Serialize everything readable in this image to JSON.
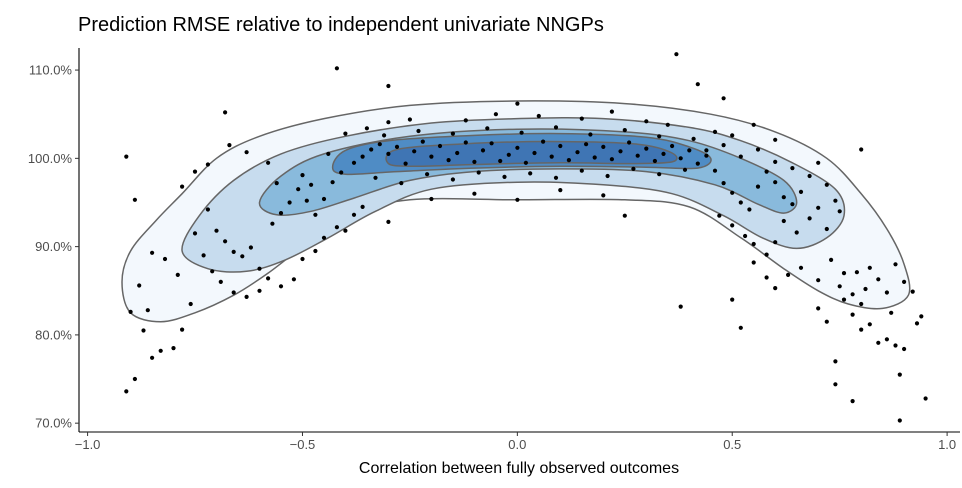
{
  "chart_data": {
    "type": "scatter",
    "title": "Prediction RMSE relative to independent univariate NNGPs",
    "xlabel": "Correlation between fully observed outcomes",
    "ylabel": "",
    "xlim": [
      -1.02,
      1.03
    ],
    "ylim": [
      69.0,
      112.5
    ],
    "x_ticks": [
      -1.0,
      -0.5,
      0.0,
      0.5,
      1.0
    ],
    "x_tick_labels": [
      "−1.0",
      "−0.5",
      "0.0",
      "0.5",
      "1.0"
    ],
    "y_ticks": [
      70,
      80,
      90,
      100,
      110
    ],
    "y_tick_labels": [
      "70.0%",
      "80.0%",
      "90.0%",
      "100.0%",
      "110.0%"
    ],
    "grid": false,
    "density_fill_colors": [
      "#f3f8fd",
      "#c7dcee",
      "#89badc",
      "#4f8cc5",
      "#3f75b4"
    ],
    "contour_line_color": "#666666",
    "contours": [
      {
        "level": 1,
        "points": [
          [
            -0.92,
            86
          ],
          [
            -0.9,
            89.5
          ],
          [
            -0.84,
            93
          ],
          [
            -0.78,
            96
          ],
          [
            -0.7,
            100
          ],
          [
            -0.6,
            102.5
          ],
          [
            -0.45,
            104.5
          ],
          [
            -0.25,
            106
          ],
          [
            0,
            106.5
          ],
          [
            0.25,
            106.2
          ],
          [
            0.45,
            105
          ],
          [
            0.6,
            103
          ],
          [
            0.72,
            100
          ],
          [
            0.8,
            96
          ],
          [
            0.86,
            92
          ],
          [
            0.9,
            88
          ],
          [
            0.91,
            84.5
          ],
          [
            0.85,
            83
          ],
          [
            0.77,
            83.5
          ],
          [
            0.7,
            85
          ],
          [
            0.62,
            87.5
          ],
          [
            0.52,
            91
          ],
          [
            0.4,
            94.5
          ],
          [
            0.25,
            95.3
          ],
          [
            0,
            95.3
          ],
          [
            -0.25,
            95.3
          ],
          [
            -0.4,
            93.5
          ],
          [
            -0.5,
            90
          ],
          [
            -0.58,
            87
          ],
          [
            -0.66,
            84.5
          ],
          [
            -0.75,
            82.5
          ],
          [
            -0.83,
            81.5
          ],
          [
            -0.9,
            82.5
          ]
        ]
      },
      {
        "level": 2,
        "points": [
          [
            -0.78,
            89.5
          ],
          [
            -0.74,
            93.5
          ],
          [
            -0.66,
            97.5
          ],
          [
            -0.55,
            100.5
          ],
          [
            -0.4,
            102.5
          ],
          [
            -0.2,
            104
          ],
          [
            0,
            104.5
          ],
          [
            0.2,
            104.5
          ],
          [
            0.4,
            103.5
          ],
          [
            0.52,
            102
          ],
          [
            0.64,
            99.5
          ],
          [
            0.74,
            96.5
          ],
          [
            0.76,
            93.5
          ],
          [
            0.72,
            91
          ],
          [
            0.65,
            89.8
          ],
          [
            0.57,
            91
          ],
          [
            0.48,
            93.5
          ],
          [
            0.36,
            96
          ],
          [
            0.2,
            97
          ],
          [
            0,
            97.3
          ],
          [
            -0.2,
            96.5
          ],
          [
            -0.33,
            94
          ],
          [
            -0.44,
            91
          ],
          [
            -0.54,
            88.5
          ],
          [
            -0.63,
            87.2
          ],
          [
            -0.72,
            87.5
          ]
        ]
      },
      {
        "level": 3,
        "points": [
          [
            -0.6,
            95
          ],
          [
            -0.55,
            98
          ],
          [
            -0.45,
            100.5
          ],
          [
            -0.25,
            102.5
          ],
          [
            0,
            103.3
          ],
          [
            0.25,
            103
          ],
          [
            0.4,
            102
          ],
          [
            0.52,
            100
          ],
          [
            0.62,
            97.5
          ],
          [
            0.65,
            95
          ],
          [
            0.62,
            93.8
          ],
          [
            0.56,
            94.8
          ],
          [
            0.46,
            97
          ],
          [
            0.3,
            98.5
          ],
          [
            0.1,
            98.8
          ],
          [
            -0.1,
            98.5
          ],
          [
            -0.25,
            97.5
          ],
          [
            -0.38,
            95.5
          ],
          [
            -0.48,
            94
          ],
          [
            -0.56,
            93.6
          ]
        ]
      },
      {
        "level": 4,
        "points": [
          [
            -0.43,
            99
          ],
          [
            -0.4,
            100.9
          ],
          [
            -0.3,
            102
          ],
          [
            -0.1,
            102.6
          ],
          [
            0.1,
            102.8
          ],
          [
            0.3,
            102.4
          ],
          [
            0.4,
            101.3
          ],
          [
            0.45,
            100
          ],
          [
            0.42,
            98.9
          ],
          [
            0.3,
            99
          ],
          [
            0.1,
            99.1
          ],
          [
            -0.1,
            98.9
          ],
          [
            -0.28,
            98.5
          ],
          [
            -0.4,
            98.2
          ]
        ]
      },
      {
        "level": 5,
        "points": [
          [
            -0.3,
            99.4
          ],
          [
            -0.28,
            101
          ],
          [
            -0.1,
            101.7
          ],
          [
            0.1,
            101.9
          ],
          [
            0.28,
            101.6
          ],
          [
            0.36,
            100.6
          ],
          [
            0.36,
            99.6
          ],
          [
            0.26,
            99.4
          ],
          [
            0.1,
            99.5
          ],
          [
            -0.1,
            99.3
          ],
          [
            -0.24,
            99.1
          ]
        ]
      }
    ],
    "points": [
      [
        -0.42,
        110.2
      ],
      [
        -0.3,
        108.2
      ],
      [
        0.37,
        111.8
      ],
      [
        0.42,
        108.4
      ],
      [
        0.48,
        106.8
      ],
      [
        -0.68,
        105.2
      ],
      [
        0.8,
        101
      ],
      [
        0.0,
        106.2
      ],
      [
        0.3,
        104.2
      ],
      [
        -0.91,
        100.2
      ],
      [
        -0.89,
        95.3
      ],
      [
        -0.85,
        89.3
      ],
      [
        -0.88,
        85.6
      ],
      [
        -0.9,
        82.6
      ],
      [
        -0.87,
        80.5
      ],
      [
        -0.83,
        78.2
      ],
      [
        -0.85,
        77.4
      ],
      [
        -0.91,
        73.6
      ],
      [
        -0.89,
        75
      ],
      [
        -0.8,
        78.5
      ],
      [
        -0.78,
        80.6
      ],
      [
        -0.76,
        83.5
      ],
      [
        -0.79,
        86.8
      ],
      [
        -0.82,
        88.6
      ],
      [
        -0.86,
        82.8
      ],
      [
        -0.78,
        96.8
      ],
      [
        -0.75,
        98.5
      ],
      [
        -0.72,
        99.3
      ],
      [
        -0.67,
        101.5
      ],
      [
        -0.63,
        100.7
      ],
      [
        -0.58,
        99.5
      ],
      [
        -0.56,
        97.2
      ],
      [
        -0.5,
        98.1
      ],
      [
        -0.48,
        97.0
      ],
      [
        -0.44,
        100.5
      ],
      [
        -0.4,
        102.8
      ],
      [
        -0.35,
        103.4
      ],
      [
        -0.3,
        104.1
      ],
      [
        -0.25,
        104.4
      ],
      [
        -0.72,
        94.2
      ],
      [
        -0.7,
        91.8
      ],
      [
        -0.68,
        90.6
      ],
      [
        -0.66,
        89.4
      ],
      [
        -0.64,
        88.9
      ],
      [
        -0.62,
        89.9
      ],
      [
        -0.6,
        87.5
      ],
      [
        -0.58,
        86.4
      ],
      [
        -0.55,
        85.5
      ],
      [
        -0.52,
        86.3
      ],
      [
        -0.5,
        88.6
      ],
      [
        -0.47,
        89.5
      ],
      [
        -0.45,
        91.0
      ],
      [
        -0.42,
        92.2
      ],
      [
        -0.4,
        91.8
      ],
      [
        -0.38,
        93.6
      ],
      [
        -0.36,
        94.5
      ],
      [
        -0.75,
        91.5
      ],
      [
        -0.73,
        89.0
      ],
      [
        -0.71,
        87.2
      ],
      [
        -0.69,
        86.0
      ],
      [
        -0.66,
        84.8
      ],
      [
        -0.63,
        84.3
      ],
      [
        -0.6,
        85.0
      ],
      [
        -0.57,
        92.6
      ],
      [
        -0.55,
        93.8
      ],
      [
        -0.53,
        95.0
      ],
      [
        -0.51,
        96.5
      ],
      [
        -0.49,
        95.2
      ],
      [
        -0.47,
        93.6
      ],
      [
        -0.45,
        95.4
      ],
      [
        -0.43,
        97.3
      ],
      [
        -0.41,
        98.4
      ],
      [
        -0.38,
        99.5
      ],
      [
        -0.36,
        100.2
      ],
      [
        -0.34,
        101.0
      ],
      [
        -0.32,
        101.6
      ],
      [
        -0.3,
        100.5
      ],
      [
        -0.28,
        101.3
      ],
      [
        -0.26,
        99.4
      ],
      [
        -0.24,
        100.8
      ],
      [
        -0.22,
        101.9
      ],
      [
        -0.2,
        100.2
      ],
      [
        -0.18,
        101.4
      ],
      [
        -0.16,
        99.8
      ],
      [
        -0.14,
        100.6
      ],
      [
        -0.12,
        101.8
      ],
      [
        -0.1,
        99.6
      ],
      [
        -0.08,
        100.9
      ],
      [
        -0.06,
        101.7
      ],
      [
        -0.04,
        99.7
      ],
      [
        -0.02,
        100.4
      ],
      [
        0.0,
        101.2
      ],
      [
        0.02,
        99.5
      ],
      [
        0.04,
        100.6
      ],
      [
        0.06,
        101.9
      ],
      [
        0.08,
        100.2
      ],
      [
        0.1,
        101.4
      ],
      [
        0.12,
        99.8
      ],
      [
        0.14,
        100.7
      ],
      [
        0.16,
        101.6
      ],
      [
        0.18,
        100.1
      ],
      [
        0.2,
        101.3
      ],
      [
        0.22,
        99.9
      ],
      [
        0.24,
        100.8
      ],
      [
        0.26,
        101.8
      ],
      [
        0.28,
        100.3
      ],
      [
        0.3,
        101.1
      ],
      [
        0.32,
        99.7
      ],
      [
        0.34,
        100.5
      ],
      [
        0.36,
        101.4
      ],
      [
        0.38,
        100.0
      ],
      [
        0.4,
        100.9
      ],
      [
        0.42,
        99.4
      ],
      [
        0.44,
        100.3
      ],
      [
        -0.33,
        97.8
      ],
      [
        -0.27,
        97.2
      ],
      [
        -0.21,
        98.2
      ],
      [
        -0.15,
        97.6
      ],
      [
        -0.09,
        98.4
      ],
      [
        -0.03,
        97.9
      ],
      [
        0.03,
        98.3
      ],
      [
        0.09,
        97.8
      ],
      [
        0.15,
        98.6
      ],
      [
        0.21,
        98.0
      ],
      [
        0.27,
        98.8
      ],
      [
        0.33,
        98.2
      ],
      [
        0.39,
        98.7
      ],
      [
        -0.31,
        102.6
      ],
      [
        -0.23,
        103.1
      ],
      [
        -0.15,
        102.8
      ],
      [
        -0.07,
        103.4
      ],
      [
        0.01,
        102.9
      ],
      [
        0.09,
        103.5
      ],
      [
        0.17,
        102.7
      ],
      [
        0.25,
        103.2
      ],
      [
        0.33,
        102.5
      ],
      [
        0.41,
        102.2
      ],
      [
        -0.12,
        104.3
      ],
      [
        0.05,
        104.8
      ],
      [
        0.15,
        104.5
      ],
      [
        0.22,
        105.3
      ],
      [
        0.35,
        103.8
      ],
      [
        -0.05,
        105.0
      ],
      [
        -0.3,
        92.8
      ],
      [
        -0.2,
        95.4
      ],
      [
        -0.1,
        96.0
      ],
      [
        0.0,
        95.3
      ],
      [
        0.1,
        96.4
      ],
      [
        0.2,
        95.8
      ],
      [
        0.25,
        93.5
      ],
      [
        0.46,
        98.6
      ],
      [
        0.48,
        97.2
      ],
      [
        0.5,
        96.1
      ],
      [
        0.52,
        95.0
      ],
      [
        0.54,
        94.2
      ],
      [
        0.56,
        96.8
      ],
      [
        0.58,
        98.5
      ],
      [
        0.6,
        97.3
      ],
      [
        0.62,
        95.6
      ],
      [
        0.64,
        94.8
      ],
      [
        0.66,
        96.2
      ],
      [
        0.68,
        98.0
      ],
      [
        0.7,
        99.5
      ],
      [
        0.72,
        97.0
      ],
      [
        0.74,
        95.2
      ],
      [
        0.47,
        93.5
      ],
      [
        0.5,
        92.4
      ],
      [
        0.53,
        91.2
      ],
      [
        0.55,
        90.3
      ],
      [
        0.58,
        89.1
      ],
      [
        0.6,
        90.5
      ],
      [
        0.62,
        92.9
      ],
      [
        0.65,
        91.6
      ],
      [
        0.68,
        93.2
      ],
      [
        0.7,
        94.4
      ],
      [
        0.72,
        92.0
      ],
      [
        0.75,
        94.0
      ],
      [
        0.44,
        100.9
      ],
      [
        0.48,
        101.5
      ],
      [
        0.52,
        100.2
      ],
      [
        0.56,
        101.0
      ],
      [
        0.6,
        99.6
      ],
      [
        0.64,
        98.9
      ],
      [
        0.46,
        103.0
      ],
      [
        0.5,
        102.6
      ],
      [
        0.55,
        103.8
      ],
      [
        0.6,
        102.1
      ],
      [
        0.55,
        88.2
      ],
      [
        0.58,
        86.5
      ],
      [
        0.6,
        85.3
      ],
      [
        0.63,
        86.8
      ],
      [
        0.66,
        87.6
      ],
      [
        0.7,
        86.2
      ],
      [
        0.73,
        88.5
      ],
      [
        0.76,
        87.0
      ],
      [
        0.78,
        84.6
      ],
      [
        0.8,
        83.5
      ],
      [
        0.5,
        84.0
      ],
      [
        0.38,
        83.2
      ],
      [
        0.52,
        80.8
      ],
      [
        0.72,
        81.5
      ],
      [
        0.7,
        83.0
      ],
      [
        0.75,
        85.5
      ],
      [
        0.82,
        87.6
      ],
      [
        0.84,
        86.3
      ],
      [
        0.86,
        84.8
      ],
      [
        0.88,
        88.0
      ],
      [
        0.9,
        86.0
      ],
      [
        0.92,
        84.9
      ],
      [
        0.94,
        82.1
      ],
      [
        0.93,
        81.3
      ],
      [
        0.9,
        78.4
      ],
      [
        0.88,
        78.8
      ],
      [
        0.86,
        79.5
      ],
      [
        0.84,
        79.1
      ],
      [
        0.82,
        81.2
      ],
      [
        0.8,
        80.6
      ],
      [
        0.78,
        82.3
      ],
      [
        0.76,
        84.0
      ],
      [
        0.74,
        77.0
      ],
      [
        0.74,
        74.4
      ],
      [
        0.78,
        72.5
      ],
      [
        0.89,
        70.3
      ],
      [
        0.95,
        72.8
      ],
      [
        0.89,
        75.5
      ],
      [
        0.87,
        82.5
      ],
      [
        0.81,
        85.2
      ],
      [
        0.79,
        87.1
      ]
    ]
  }
}
